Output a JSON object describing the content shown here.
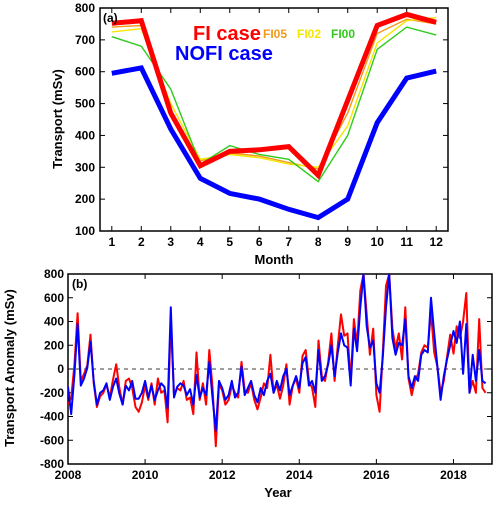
{
  "chart_data": [
    {
      "panel_label": "(a)",
      "type": "line",
      "xlabel": "Month",
      "ylabel": "Transport (mSv)",
      "xlim": [
        0.6,
        12.4
      ],
      "ylim": [
        100,
        800
      ],
      "x": [
        1,
        2,
        3,
        4,
        5,
        6,
        7,
        8,
        9,
        10,
        11,
        12
      ],
      "xticks": [
        "1",
        "2",
        "3",
        "4",
        "5",
        "6",
        "7",
        "8",
        "9",
        "10",
        "11",
        "12"
      ],
      "yticks": [
        "100",
        "200",
        "300",
        "400",
        "500",
        "600",
        "700",
        "800"
      ],
      "legend": [
        {
          "name": "FI case",
          "color": "#ff0000"
        },
        {
          "name": "NOFI case",
          "color": "#0000ff"
        },
        {
          "name": "FI05",
          "color": "#f29a1a"
        },
        {
          "name": "FI02",
          "color": "#f5e600"
        },
        {
          "name": "FI00",
          "color": "#2ecc1a"
        }
      ],
      "series": [
        {
          "name": "FI05",
          "color": "#f29a1a",
          "values": [
            740,
            745,
            470,
            320,
            345,
            335,
            315,
            295,
            470,
            720,
            765,
            750
          ]
        },
        {
          "name": "FI02",
          "color": "#f5e600",
          "values": [
            725,
            735,
            500,
            325,
            340,
            330,
            310,
            300,
            430,
            690,
            760,
            770
          ]
        },
        {
          "name": "FI00",
          "color": "#2ecc1a",
          "values": [
            710,
            680,
            545,
            310,
            368,
            340,
            325,
            255,
            400,
            670,
            740,
            715
          ]
        },
        {
          "name": "NOFI case",
          "color": "#0000ff",
          "values": [
            595,
            612,
            420,
            265,
            218,
            200,
            168,
            142,
            200,
            440,
            580,
            602
          ]
        },
        {
          "name": "FI case",
          "color": "#ff0000",
          "values": [
            752,
            760,
            470,
            305,
            350,
            355,
            365,
            275,
            510,
            745,
            780,
            755
          ]
        }
      ]
    },
    {
      "panel_label": "(b)",
      "type": "line",
      "xlabel": "Year",
      "ylabel": "Transport Anomaly (mSv)",
      "xlim": [
        2008,
        2019
      ],
      "ylim": [
        -800,
        800
      ],
      "xticks": [
        "2008",
        "2010",
        "2012",
        "2014",
        "2016",
        "2018"
      ],
      "yticks": [
        "-800",
        "-600",
        "-400",
        "-200",
        "0",
        "200",
        "400",
        "600",
        "800"
      ],
      "zero_line": "dashed",
      "x_start": 2008.0,
      "x_step": 0.0833333,
      "series": [
        {
          "name": "FI",
          "color": "#ff0000",
          "values": [
            -300,
            -240,
            30,
            470,
            -100,
            -40,
            30,
            290,
            -120,
            -320,
            -230,
            -200,
            -130,
            -240,
            -90,
            40,
            -160,
            -300,
            -100,
            -80,
            -160,
            -320,
            -360,
            -280,
            -140,
            -260,
            -120,
            -300,
            -80,
            -200,
            -180,
            -450,
            420,
            -220,
            -160,
            -180,
            -100,
            -260,
            -240,
            -380,
            140,
            -260,
            -120,
            -300,
            160,
            -150,
            -650,
            -130,
            -180,
            -300,
            -260,
            -140,
            -200,
            -240,
            60,
            -180,
            -200,
            -120,
            -260,
            -340,
            -240,
            -120,
            -160,
            120,
            -200,
            -130,
            -250,
            -140,
            40,
            -300,
            -140,
            -80,
            -200,
            110,
            160,
            -100,
            -160,
            -320,
            240,
            -60,
            -100,
            60,
            300,
            -100,
            200,
            460,
            280,
            300,
            -100,
            420,
            200,
            660,
            800,
            460,
            120,
            340,
            -220,
            -360,
            140,
            700,
            800,
            340,
            170,
            300,
            80,
            520,
            -80,
            -220,
            -100,
            -40,
            140,
            200,
            180,
            480,
            140,
            20,
            -200,
            -100,
            100,
            290,
            130,
            360,
            260,
            400,
            640,
            -200,
            -100,
            -200,
            420,
            -160,
            -200
          ]
        },
        {
          "name": "NOFI",
          "color": "#0000ff",
          "values": [
            -150,
            -380,
            -50,
            380,
            -140,
            -80,
            10,
            230,
            -100,
            -300,
            -200,
            -180,
            -120,
            -260,
            -150,
            -80,
            -210,
            -300,
            -140,
            -180,
            -100,
            -250,
            -250,
            -200,
            -100,
            -240,
            -140,
            -260,
            -180,
            -120,
            -150,
            -330,
            520,
            -240,
            -150,
            -120,
            -140,
            -220,
            -170,
            -300,
            -50,
            -240,
            -160,
            -220,
            60,
            -240,
            -520,
            -100,
            -160,
            -260,
            -220,
            -100,
            -240,
            -200,
            20,
            -220,
            -160,
            -100,
            -220,
            -280,
            -160,
            -220,
            -100,
            -40,
            -200,
            -100,
            -180,
            -60,
            0,
            -220,
            -140,
            -60,
            -160,
            50,
            100,
            -140,
            -100,
            -200,
            160,
            -100,
            -60,
            40,
            200,
            -60,
            140,
            300,
            200,
            180,
            -140,
            340,
            150,
            520,
            800,
            360,
            180,
            240,
            -120,
            -200,
            100,
            520,
            800,
            260,
            120,
            220,
            200,
            420,
            -60,
            -160,
            -60,
            -100,
            120,
            160,
            140,
            600,
            300,
            20,
            -260,
            -60,
            80,
            200,
            320,
            220,
            400,
            -40,
            380,
            -200,
            120,
            -100,
            160,
            -100,
            -120
          ]
        }
      ]
    }
  ]
}
